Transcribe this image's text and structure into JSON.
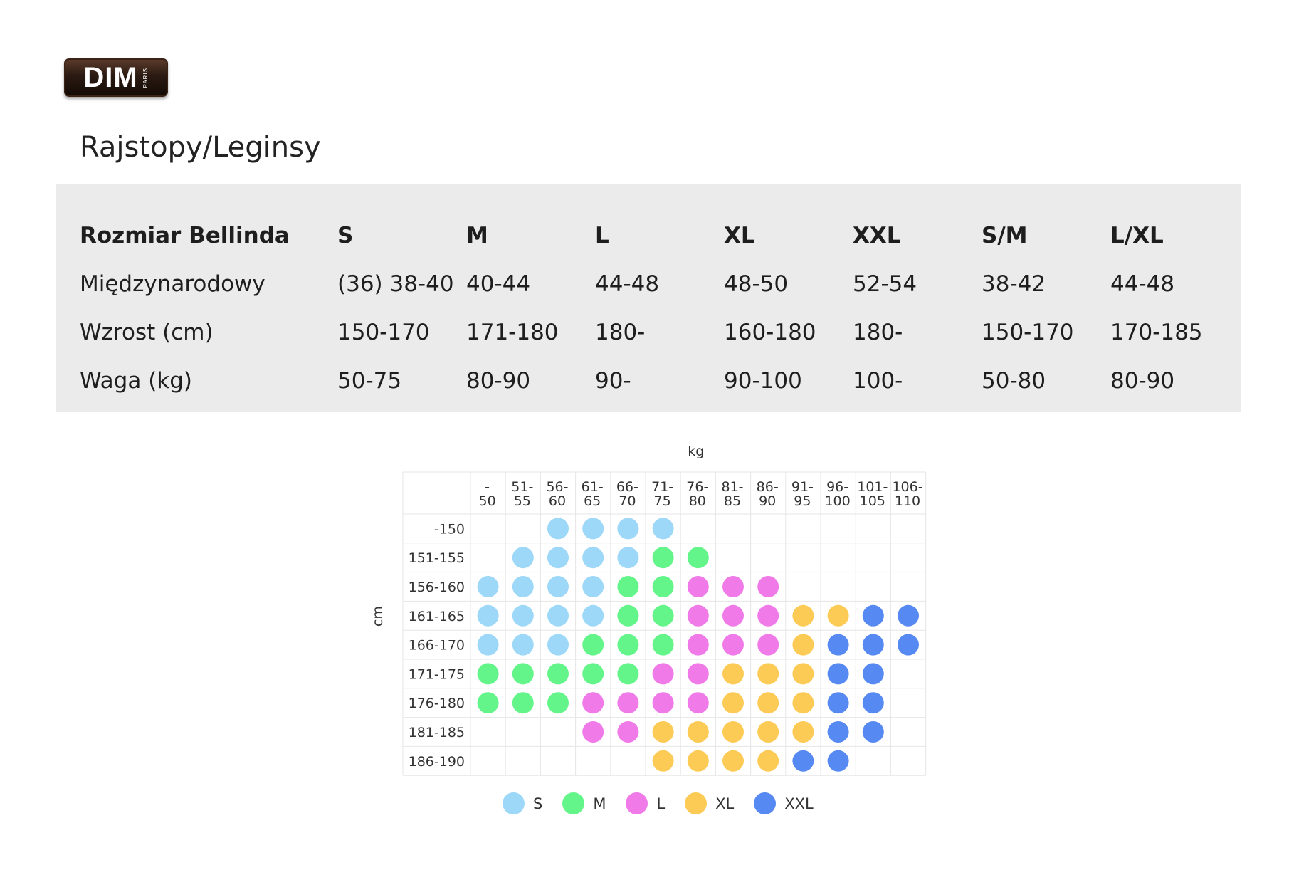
{
  "logo": {
    "text": "DIM",
    "subtext": "PARIS"
  },
  "page_title": "Rajstopy/Leginsy",
  "size_table": {
    "header": [
      "Rozmiar Bellinda",
      "S",
      "M",
      "L",
      "XL",
      "XXL",
      "S/M",
      "L/XL"
    ],
    "rows": [
      [
        "Międzynarodowy",
        "(36) 38-40",
        "40-44",
        "44-48",
        "48-50",
        "52-54",
        "38-42",
        "44-48"
      ],
      [
        "Wzrost (cm)",
        "150-170",
        "171-180",
        "180-",
        "160-180",
        "180-",
        "150-170",
        "170-185"
      ],
      [
        "Waga (kg)",
        "50-75",
        "80-90",
        "90-",
        "90-100",
        "100-",
        "50-80",
        "80-90"
      ]
    ]
  },
  "chart_data": {
    "type": "table",
    "xlabel": "kg",
    "ylabel": "cm",
    "x_categories": [
      [
        "-",
        "50"
      ],
      [
        "51-",
        "55"
      ],
      [
        "56-",
        "60"
      ],
      [
        "61-",
        "65"
      ],
      [
        "66-",
        "70"
      ],
      [
        "71-",
        "75"
      ],
      [
        "76-",
        "80"
      ],
      [
        "81-",
        "85"
      ],
      [
        "86-",
        "90"
      ],
      [
        "91-",
        "95"
      ],
      [
        "96-",
        "100"
      ],
      [
        "101-",
        "105"
      ],
      [
        "106-",
        "110"
      ]
    ],
    "y_categories": [
      "-150",
      "151-155",
      "156-160",
      "161-165",
      "166-170",
      "171-175",
      "176-180",
      "181-185",
      "186-190"
    ],
    "sizes": [
      "S",
      "M",
      "L",
      "XL",
      "XXL"
    ],
    "colors": {
      "S": "#9dd8f8",
      "M": "#64f58a",
      "L": "#f07ae8",
      "XL": "#fccb55",
      "XXL": "#5789f2"
    },
    "grid": [
      [
        "",
        "",
        "S",
        "S",
        "S",
        "S",
        "",
        "",
        "",
        "",
        "",
        "",
        ""
      ],
      [
        "",
        "S",
        "S",
        "S",
        "S",
        "M",
        "M",
        "",
        "",
        "",
        "",
        "",
        ""
      ],
      [
        "S",
        "S",
        "S",
        "S",
        "M",
        "M",
        "L",
        "L",
        "L",
        "",
        "",
        "",
        ""
      ],
      [
        "S",
        "S",
        "S",
        "S",
        "M",
        "M",
        "L",
        "L",
        "L",
        "XL",
        "XL",
        "XXL",
        "XXL"
      ],
      [
        "S",
        "S",
        "S",
        "M",
        "M",
        "M",
        "L",
        "L",
        "L",
        "XL",
        "XXL",
        "XXL",
        "XXL"
      ],
      [
        "M",
        "M",
        "M",
        "M",
        "M",
        "L",
        "L",
        "XL",
        "XL",
        "XL",
        "XXL",
        "XXL",
        ""
      ],
      [
        "M",
        "M",
        "M",
        "L",
        "L",
        "L",
        "L",
        "XL",
        "XL",
        "XL",
        "XXL",
        "XXL",
        ""
      ],
      [
        "",
        "",
        "",
        "L",
        "L",
        "XL",
        "XL",
        "XL",
        "XL",
        "XL",
        "XXL",
        "XXL",
        ""
      ],
      [
        "",
        "",
        "",
        "",
        "",
        "XL",
        "XL",
        "XL",
        "XL",
        "XXL",
        "XXL",
        "",
        ""
      ]
    ]
  }
}
